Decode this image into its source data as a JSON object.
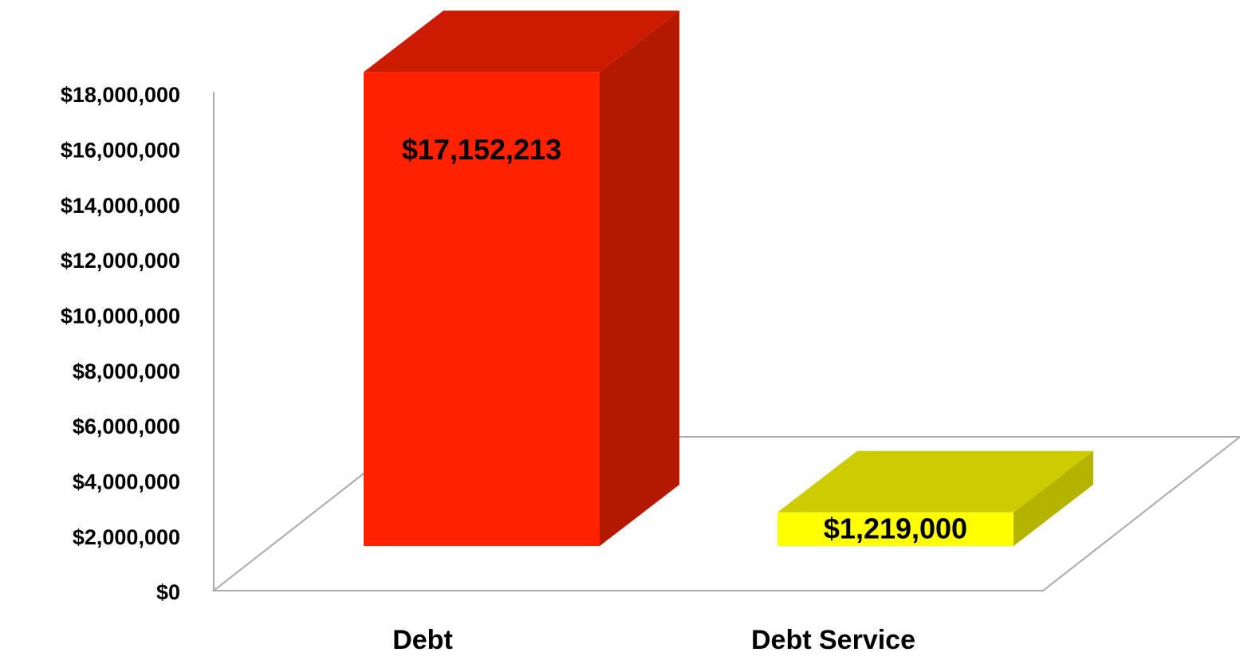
{
  "chart_data": {
    "type": "bar3d",
    "categories": [
      "Debt",
      "Debt Service"
    ],
    "values": [
      17152213,
      1219000
    ],
    "value_labels": [
      "$17,152,213",
      "$1,219,000"
    ],
    "colors": [
      "#ff2200",
      "#ffff00"
    ],
    "ylim": [
      0,
      18000000
    ],
    "yticks": [
      {
        "value": 0,
        "label": "$0"
      },
      {
        "value": 2000000,
        "label": "$2,000,000"
      },
      {
        "value": 4000000,
        "label": "$4,000,000"
      },
      {
        "value": 6000000,
        "label": "$6,000,000"
      },
      {
        "value": 8000000,
        "label": "$8,000,000"
      },
      {
        "value": 10000000,
        "label": "$10,000,000"
      },
      {
        "value": 12000000,
        "label": "$12,000,000"
      },
      {
        "value": 14000000,
        "label": "$14,000,000"
      },
      {
        "value": 16000000,
        "label": "$16,000,000"
      },
      {
        "value": 18000000,
        "label": "$18,000,000"
      }
    ]
  }
}
